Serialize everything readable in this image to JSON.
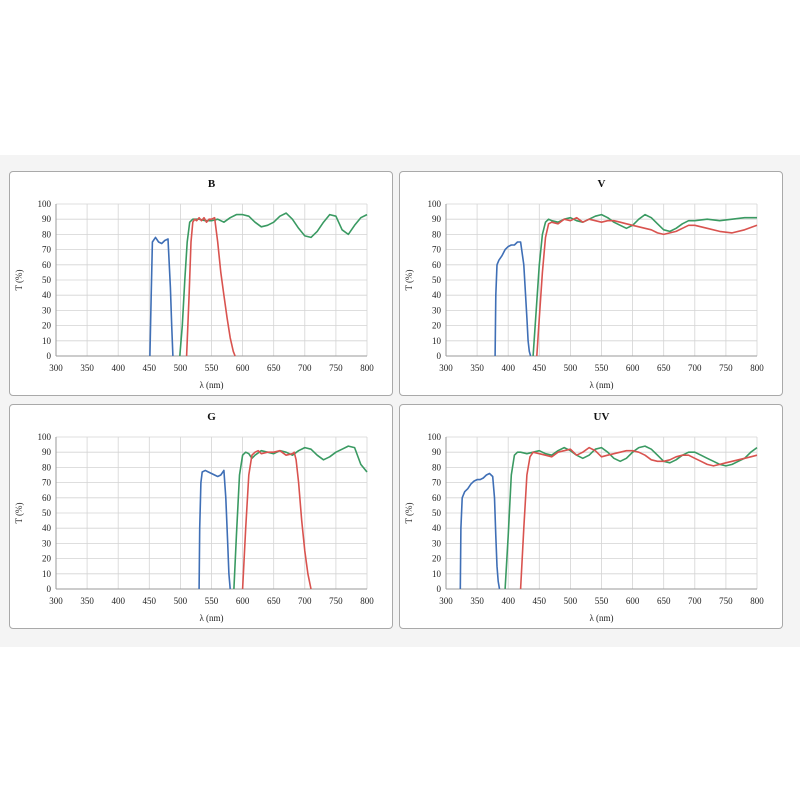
{
  "colors": {
    "blue": "#3f6fb6",
    "green": "#3a9a62",
    "red": "#d9534f",
    "grid": "#d4d4d4",
    "axis": "#9a9a9a"
  },
  "chart_data": [
    {
      "type": "line",
      "title": "B",
      "xlabel": "λ (nm)",
      "ylabel": "T (%)",
      "xlim": [
        300,
        800
      ],
      "ylim": [
        0,
        100
      ],
      "xticks": [
        "300",
        "350",
        "400",
        "450",
        "500",
        "550",
        "600",
        "650",
        "700",
        "750",
        "800"
      ],
      "yticks": [
        "0",
        "10",
        "20",
        "30",
        "40",
        "50",
        "60",
        "70",
        "80",
        "90",
        "100"
      ],
      "grid": true,
      "series": [
        {
          "color": "blue",
          "x": [
            451,
            453,
            455,
            460,
            465,
            470,
            475,
            480,
            484,
            486,
            488
          ],
          "y": [
            0,
            40,
            75,
            78,
            75,
            74,
            76,
            77,
            45,
            20,
            0
          ]
        },
        {
          "color": "green",
          "x": [
            499,
            503,
            507,
            511,
            515,
            520,
            530,
            540,
            550,
            560,
            570,
            580,
            590,
            600,
            610,
            620,
            630,
            640,
            650,
            660,
            670,
            680,
            690,
            700,
            710,
            720,
            730,
            740,
            750,
            760,
            770,
            780,
            790,
            800
          ],
          "y": [
            0,
            20,
            50,
            75,
            88,
            90,
            90,
            89,
            89,
            90,
            88,
            91,
            93,
            93,
            92,
            88,
            85,
            86,
            88,
            92,
            94,
            90,
            84,
            79,
            78,
            82,
            88,
            93,
            92,
            83,
            80,
            86,
            91,
            93
          ]
        },
        {
          "color": "red",
          "x": [
            510,
            514,
            517,
            520,
            523,
            526,
            530,
            534,
            538,
            542,
            546,
            550,
            555,
            560,
            565,
            570,
            575,
            580,
            585,
            588
          ],
          "y": [
            0,
            40,
            75,
            88,
            90,
            89,
            91,
            89,
            91,
            88,
            90,
            90,
            91,
            75,
            55,
            40,
            25,
            12,
            3,
            0
          ]
        }
      ]
    },
    {
      "type": "line",
      "title": "V",
      "xlabel": "λ (nm)",
      "ylabel": "T (%)",
      "xlim": [
        300,
        800
      ],
      "ylim": [
        0,
        100
      ],
      "xticks": [
        "300",
        "350",
        "400",
        "450",
        "500",
        "550",
        "600",
        "650",
        "700",
        "750",
        "800"
      ],
      "yticks": [
        "0",
        "10",
        "20",
        "30",
        "40",
        "50",
        "60",
        "70",
        "80",
        "90",
        "100"
      ],
      "grid": true,
      "series": [
        {
          "color": "blue",
          "x": [
            379,
            380,
            382,
            385,
            390,
            395,
            400,
            405,
            410,
            415,
            420,
            425,
            430,
            432,
            434,
            436
          ],
          "y": [
            0,
            40,
            60,
            63,
            66,
            70,
            72,
            73,
            73,
            75,
            75,
            60,
            25,
            10,
            3,
            0
          ]
        },
        {
          "color": "green",
          "x": [
            440,
            445,
            450,
            455,
            460,
            465,
            470,
            480,
            490,
            500,
            510,
            520,
            530,
            540,
            550,
            560,
            570,
            580,
            590,
            600,
            610,
            620,
            630,
            640,
            650,
            660,
            670,
            680,
            690,
            700,
            720,
            740,
            760,
            780,
            800
          ],
          "y": [
            0,
            30,
            60,
            80,
            88,
            90,
            89,
            88,
            90,
            91,
            89,
            88,
            90,
            92,
            93,
            91,
            88,
            86,
            84,
            86,
            90,
            93,
            91,
            87,
            83,
            82,
            84,
            87,
            89,
            89,
            90,
            89,
            90,
            91,
            91
          ]
        },
        {
          "color": "red",
          "x": [
            446,
            450,
            455,
            460,
            465,
            470,
            480,
            490,
            500,
            510,
            520,
            530,
            540,
            550,
            560,
            570,
            580,
            590,
            600,
            610,
            620,
            630,
            640,
            650,
            660,
            670,
            680,
            690,
            700,
            710,
            720,
            740,
            760,
            780,
            800
          ],
          "y": [
            0,
            25,
            55,
            78,
            87,
            88,
            87,
            90,
            89,
            91,
            88,
            90,
            89,
            88,
            89,
            89,
            88,
            87,
            86,
            85,
            84,
            83,
            81,
            80,
            81,
            82,
            84,
            86,
            86,
            85,
            84,
            82,
            81,
            83,
            86
          ]
        }
      ]
    },
    {
      "type": "line",
      "title": "G",
      "xlabel": "λ (nm)",
      "ylabel": "T (%)",
      "xlim": [
        300,
        800
      ],
      "ylim": [
        0,
        100
      ],
      "xticks": [
        "300",
        "350",
        "400",
        "450",
        "500",
        "550",
        "600",
        "650",
        "700",
        "750",
        "800"
      ],
      "yticks": [
        "0",
        "10",
        "20",
        "30",
        "40",
        "50",
        "60",
        "70",
        "80",
        "90",
        "100"
      ],
      "grid": true,
      "series": [
        {
          "color": "blue",
          "x": [
            530,
            531,
            533,
            535,
            540,
            545,
            550,
            555,
            560,
            565,
            570,
            573,
            576,
            578,
            580
          ],
          "y": [
            0,
            40,
            70,
            77,
            78,
            77,
            76,
            75,
            74,
            75,
            78,
            60,
            30,
            10,
            0
          ]
        },
        {
          "color": "green",
          "x": [
            586,
            590,
            595,
            600,
            605,
            610,
            615,
            620,
            630,
            640,
            650,
            660,
            670,
            680,
            690,
            700,
            710,
            720,
            730,
            740,
            750,
            760,
            770,
            780,
            790,
            800
          ],
          "y": [
            0,
            35,
            75,
            88,
            90,
            89,
            86,
            88,
            91,
            90,
            89,
            91,
            90,
            88,
            91,
            93,
            92,
            88,
            85,
            87,
            90,
            92,
            94,
            93,
            82,
            77
          ]
        },
        {
          "color": "red",
          "x": [
            600,
            605,
            610,
            615,
            620,
            625,
            630,
            640,
            650,
            660,
            670,
            680,
            683,
            686,
            690,
            695,
            700,
            705,
            710
          ],
          "y": [
            0,
            40,
            75,
            88,
            90,
            91,
            89,
            90,
            90,
            91,
            88,
            89,
            90,
            85,
            70,
            45,
            25,
            10,
            0
          ]
        }
      ]
    },
    {
      "type": "line",
      "title": "UV",
      "xlabel": "λ (nm)",
      "ylabel": "T (%)",
      "xlim": [
        300,
        800
      ],
      "ylim": [
        0,
        100
      ],
      "xticks": [
        "300",
        "350",
        "400",
        "450",
        "500",
        "550",
        "600",
        "650",
        "700",
        "750",
        "800"
      ],
      "yticks": [
        "0",
        "10",
        "20",
        "30",
        "40",
        "50",
        "60",
        "70",
        "80",
        "90",
        "100"
      ],
      "grid": true,
      "series": [
        {
          "color": "blue",
          "x": [
            323,
            324,
            326,
            330,
            335,
            340,
            345,
            350,
            355,
            360,
            365,
            370,
            375,
            378,
            380,
            382,
            384,
            386
          ],
          "y": [
            0,
            40,
            60,
            64,
            66,
            69,
            71,
            72,
            72,
            73,
            75,
            76,
            74,
            60,
            35,
            15,
            5,
            0
          ]
        },
        {
          "color": "green",
          "x": [
            395,
            400,
            405,
            410,
            415,
            420,
            430,
            440,
            450,
            460,
            470,
            480,
            490,
            500,
            510,
            520,
            530,
            540,
            550,
            560,
            570,
            580,
            590,
            600,
            610,
            620,
            630,
            640,
            650,
            660,
            670,
            680,
            690,
            700,
            710,
            720,
            730,
            740,
            750,
            760,
            770,
            780,
            790,
            800
          ],
          "y": [
            0,
            35,
            75,
            88,
            90,
            90,
            89,
            90,
            91,
            89,
            88,
            91,
            93,
            91,
            88,
            86,
            88,
            92,
            93,
            90,
            86,
            84,
            86,
            90,
            93,
            94,
            92,
            88,
            84,
            83,
            85,
            88,
            90,
            90,
            88,
            86,
            84,
            82,
            81,
            82,
            84,
            86,
            90,
            93
          ]
        },
        {
          "color": "red",
          "x": [
            420,
            425,
            430,
            435,
            440,
            450,
            460,
            470,
            480,
            490,
            500,
            510,
            520,
            530,
            540,
            550,
            560,
            570,
            580,
            590,
            600,
            610,
            620,
            630,
            640,
            650,
            660,
            670,
            680,
            690,
            700,
            710,
            720,
            730,
            740,
            750,
            760,
            770,
            780,
            790,
            800
          ],
          "y": [
            0,
            40,
            75,
            87,
            90,
            89,
            88,
            87,
            90,
            91,
            92,
            88,
            90,
            93,
            91,
            87,
            88,
            89,
            90,
            91,
            91,
            90,
            88,
            85,
            84,
            84,
            85,
            87,
            88,
            88,
            86,
            84,
            82,
            81,
            82,
            83,
            84,
            85,
            86,
            87,
            88
          ]
        }
      ]
    }
  ]
}
